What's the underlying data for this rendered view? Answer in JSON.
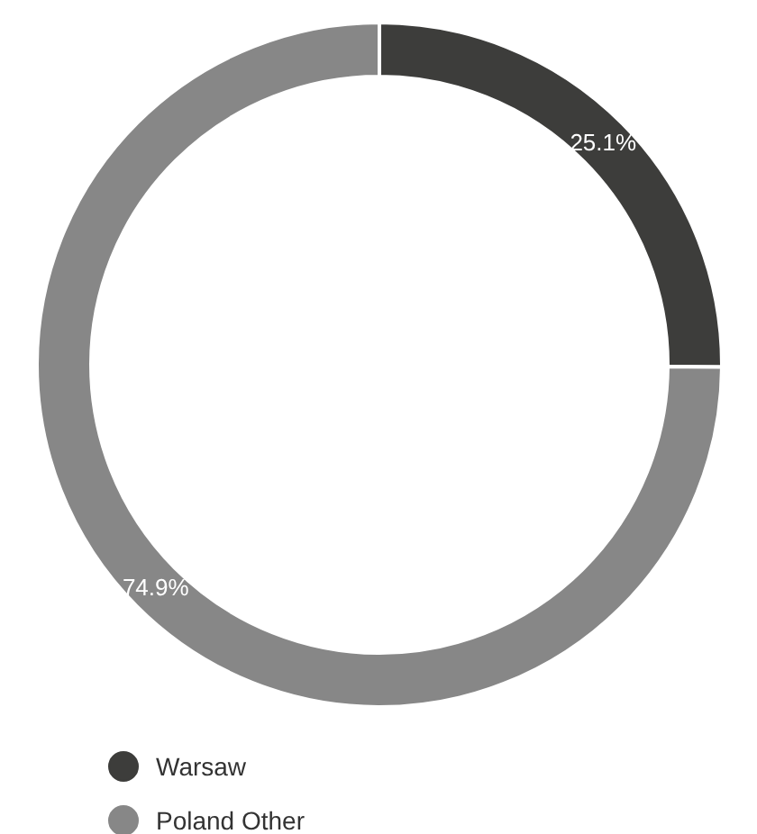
{
  "chart_data": {
    "type": "donut",
    "categories": [
      "Warsaw",
      "Poland Other"
    ],
    "values": [
      25.1,
      74.9
    ],
    "colors": [
      "#3d3d3b",
      "#878787"
    ],
    "value_labels": [
      "25.1%",
      "74.9%"
    ],
    "legend": "bottom left"
  }
}
